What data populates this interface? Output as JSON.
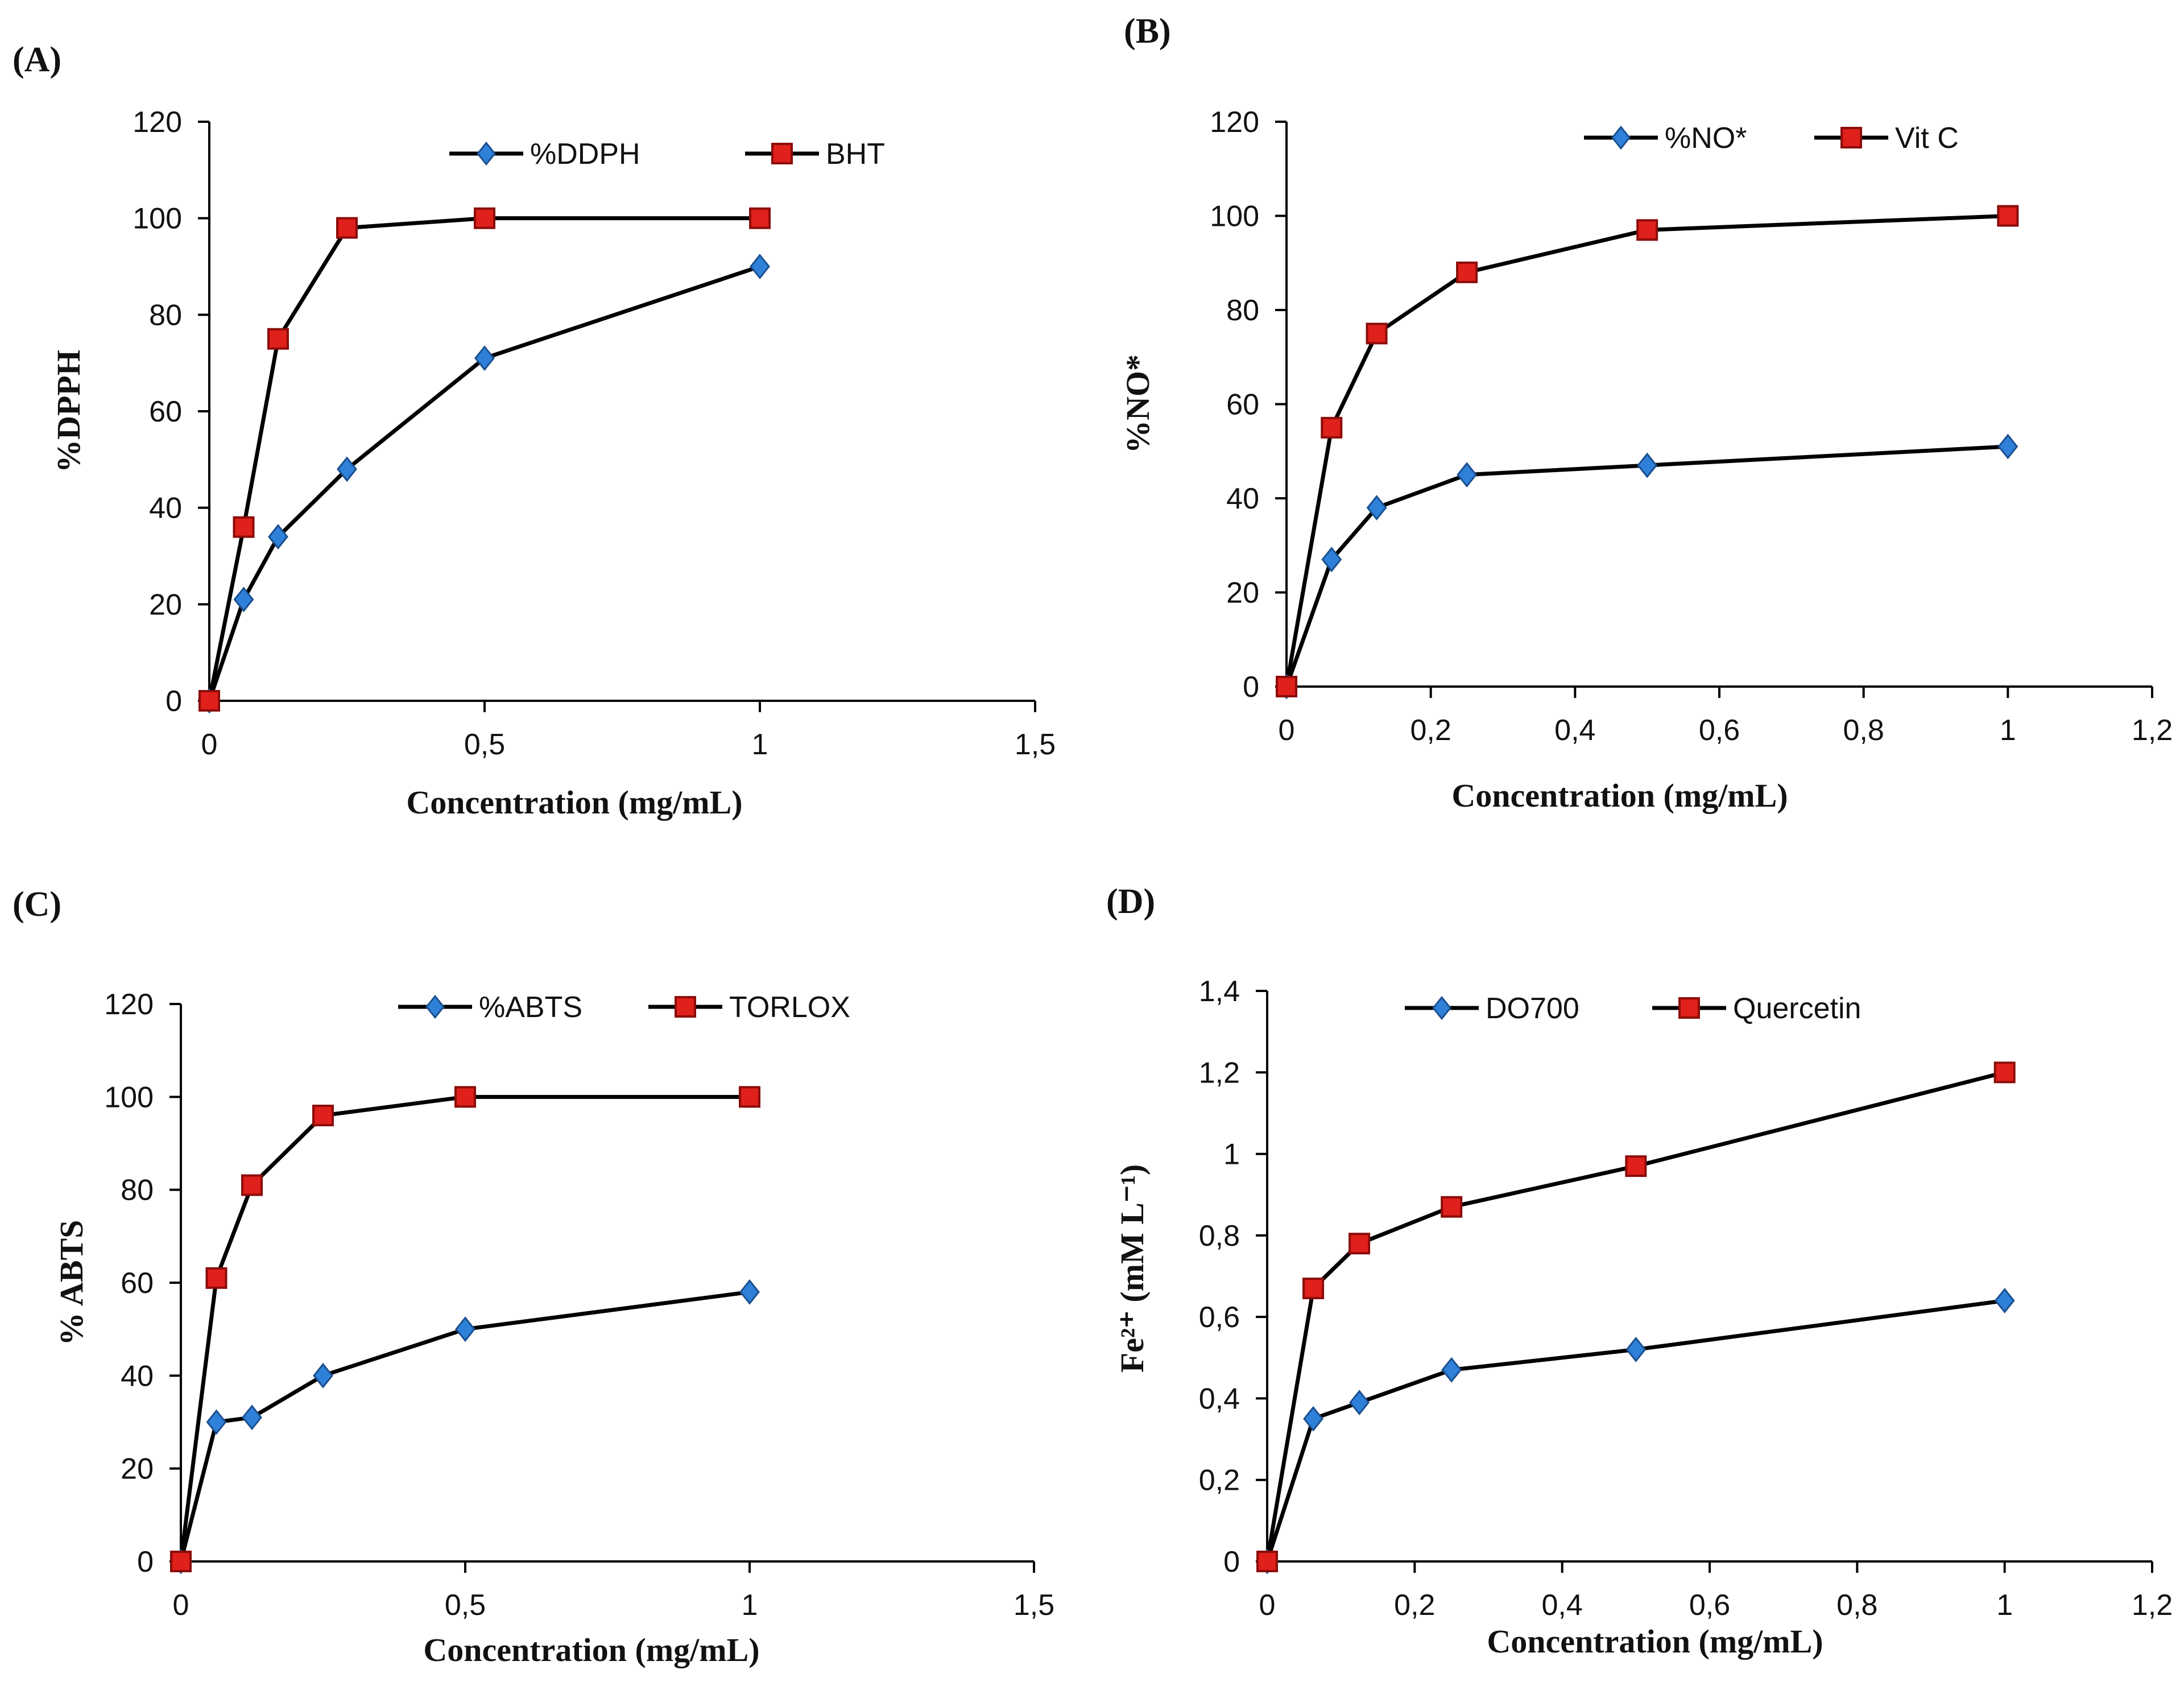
{
  "figure": {
    "colors": {
      "axis": "#000000",
      "text": "#111111",
      "line": "#000000",
      "marker_blue": "#2f80d8",
      "marker_blue_stroke": "#1a4f8e",
      "marker_red": "#e0201b",
      "marker_red_stroke": "#8b0d0a",
      "background": "#ffffff"
    }
  },
  "chart_data": [
    {
      "panel": "(A)",
      "type": "line",
      "ylabel": "%DPPH",
      "xlabel": "Concentration (mg/mL)",
      "xlim": [
        0,
        1.5
      ],
      "ylim": [
        0,
        120
      ],
      "x_ticks": [
        "0",
        "0,5",
        "1",
        "1,5"
      ],
      "y_ticks": [
        "0",
        "20",
        "40",
        "60",
        "80",
        "100",
        "120"
      ],
      "x_tick_values": [
        0,
        0.5,
        1,
        1.5
      ],
      "y_tick_values": [
        0,
        20,
        40,
        60,
        80,
        100,
        120
      ],
      "grid": false,
      "legend": "top-center",
      "series": [
        {
          "name": "%DDPH",
          "marker": "diamond",
          "color": "blue",
          "x": [
            0,
            0.0625,
            0.125,
            0.25,
            0.5,
            1
          ],
          "y": [
            0,
            21,
            34,
            48,
            71,
            90
          ]
        },
        {
          "name": "BHT",
          "marker": "square",
          "color": "red",
          "x": [
            0,
            0.0625,
            0.125,
            0.25,
            0.5,
            1
          ],
          "y": [
            0,
            36,
            75,
            98,
            100,
            100
          ]
        }
      ]
    },
    {
      "panel": "(B)",
      "type": "line",
      "ylabel": "%NO*",
      "xlabel": "Concentration (mg/mL)",
      "xlim": [
        0,
        1.2
      ],
      "ylim": [
        0,
        120
      ],
      "x_ticks": [
        "0",
        "0,2",
        "0,4",
        "0,6",
        "0,8",
        "1",
        "1,2"
      ],
      "y_ticks": [
        "0",
        "20",
        "40",
        "60",
        "80",
        "100",
        "120"
      ],
      "x_tick_values": [
        0,
        0.2,
        0.4,
        0.6,
        0.8,
        1,
        1.2
      ],
      "y_tick_values": [
        0,
        20,
        40,
        60,
        80,
        100,
        120
      ],
      "grid": false,
      "legend": "top-right",
      "series": [
        {
          "name": "%NO*",
          "marker": "diamond",
          "color": "blue",
          "x": [
            0,
            0.0625,
            0.125,
            0.25,
            0.5,
            1
          ],
          "y": [
            0,
            27,
            38,
            45,
            47,
            51
          ]
        },
        {
          "name": "Vit C",
          "marker": "square",
          "color": "red",
          "x": [
            0,
            0.0625,
            0.125,
            0.25,
            0.5,
            1
          ],
          "y": [
            0,
            55,
            75,
            88,
            97,
            100
          ]
        }
      ]
    },
    {
      "panel": "(C)",
      "type": "line",
      "ylabel": "% ABTS",
      "xlabel": "Concentration (mg/mL)",
      "xlim": [
        0,
        1.5
      ],
      "ylim": [
        0,
        120
      ],
      "x_ticks": [
        "0",
        "0,5",
        "1",
        "1,5"
      ],
      "y_ticks": [
        "0",
        "20",
        "40",
        "60",
        "80",
        "100",
        "120"
      ],
      "x_tick_values": [
        0,
        0.5,
        1,
        1.5
      ],
      "y_tick_values": [
        0,
        20,
        40,
        60,
        80,
        100,
        120
      ],
      "grid": false,
      "legend": "top-center",
      "series": [
        {
          "name": "%ABTS",
          "marker": "diamond",
          "color": "blue",
          "x": [
            0,
            0.0625,
            0.125,
            0.25,
            0.5,
            1
          ],
          "y": [
            0,
            30,
            31,
            40,
            50,
            58
          ]
        },
        {
          "name": "TORLOX",
          "marker": "square",
          "color": "red",
          "x": [
            0,
            0.0625,
            0.125,
            0.25,
            0.5,
            1
          ],
          "y": [
            0,
            61,
            81,
            96,
            100,
            100
          ]
        }
      ]
    },
    {
      "panel": "(D)",
      "type": "line",
      "ylabel": "Fe²⁺ (mM L⁻¹)",
      "xlabel": "Concentration (mg/mL)",
      "xlim": [
        0,
        1.2
      ],
      "ylim": [
        0,
        1.4
      ],
      "x_ticks": [
        "0",
        "0,2",
        "0,4",
        "0,6",
        "0,8",
        "1",
        "1,2"
      ],
      "y_ticks": [
        "0",
        "0,2",
        "0,4",
        "0,6",
        "0,8",
        "1",
        "1,2",
        "1,4"
      ],
      "x_tick_values": [
        0,
        0.2,
        0.4,
        0.6,
        0.8,
        1,
        1.2
      ],
      "y_tick_values": [
        0,
        0.2,
        0.4,
        0.6,
        0.8,
        1,
        1.2,
        1.4
      ],
      "grid": false,
      "legend": "top-center",
      "series": [
        {
          "name": "DO700",
          "marker": "diamond",
          "color": "blue",
          "x": [
            0,
            0.0625,
            0.125,
            0.25,
            0.5,
            1
          ],
          "y": [
            0,
            0.35,
            0.39,
            0.47,
            0.52,
            0.64
          ]
        },
        {
          "name": "Quercetin",
          "marker": "square",
          "color": "red",
          "x": [
            0,
            0.0625,
            0.125,
            0.25,
            0.5,
            1
          ],
          "y": [
            0,
            0.67,
            0.78,
            0.87,
            0.97,
            1.2
          ]
        }
      ]
    }
  ]
}
